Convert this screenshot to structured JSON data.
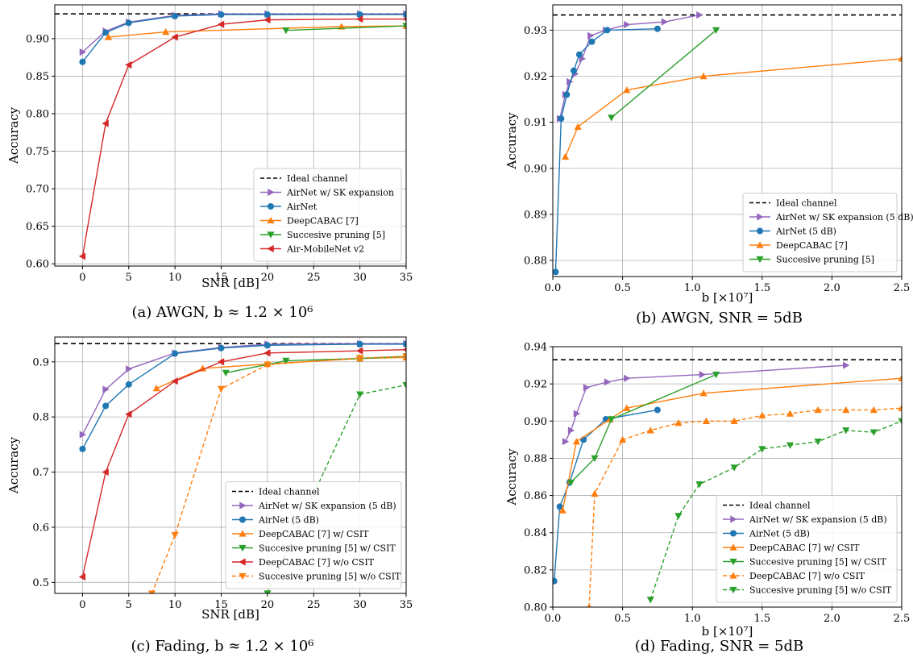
{
  "figure": {
    "panels": [
      "a",
      "b",
      "c",
      "d"
    ]
  },
  "colors": {
    "ideal": "#000000",
    "purple": "#9467bd",
    "blue": "#1f77b4",
    "orange": "#ff7f0e",
    "green": "#2ca02c",
    "red": "#d62728",
    "grid": "#b0b0b0"
  },
  "chart_data": [
    {
      "id": "a",
      "type": "line",
      "caption": "(a) AWGN, b ≈ 1.2 × 10⁶",
      "xlabel": "SNR [dB]",
      "ylabel": "Accuracy",
      "xlim": [
        -3,
        35
      ],
      "ylim": [
        0.597,
        0.945
      ],
      "xticks": [
        0,
        5,
        10,
        15,
        20,
        25,
        30,
        35
      ],
      "xtick_labels": [
        "0",
        "5",
        "10",
        "15",
        "20",
        "25",
        "30",
        "35"
      ],
      "yticks": [
        0.6,
        0.65,
        0.7,
        0.75,
        0.8,
        0.85,
        0.9
      ],
      "ytick_labels": [
        "0.60",
        "0.65",
        "0.70",
        "0.75",
        "0.80",
        "0.85",
        "0.90"
      ],
      "grid": true,
      "legend_position": "lower-right",
      "ideal": 0.933,
      "series": [
        {
          "name": "Ideal channel",
          "color": "#000000",
          "marker": "none",
          "dash": "dashed",
          "x": [],
          "y": []
        },
        {
          "name": "AirNet w/ SK expansion",
          "color": "#9467bd",
          "marker": "tri-right",
          "dash": "solid",
          "x": [
            0,
            2.5,
            5,
            10,
            15,
            20,
            30,
            35
          ],
          "y": [
            0.882,
            0.91,
            0.922,
            0.931,
            0.933,
            0.933,
            0.933,
            0.933
          ]
        },
        {
          "name": "AirNet",
          "color": "#1f77b4",
          "marker": "circle",
          "dash": "solid",
          "x": [
            0,
            2.5,
            5,
            10,
            15,
            20,
            30,
            35
          ],
          "y": [
            0.869,
            0.908,
            0.921,
            0.93,
            0.932,
            0.932,
            0.932,
            0.932
          ]
        },
        {
          "name": "DeepCABAC [7]",
          "color": "#ff7f0e",
          "marker": "tri-up",
          "dash": "solid",
          "x": [
            2.8,
            9,
            28,
            35
          ],
          "y": [
            0.902,
            0.909,
            0.916,
            0.917
          ]
        },
        {
          "name": "Succesive pruning [5]",
          "color": "#2ca02c",
          "marker": "tri-down",
          "dash": "solid",
          "x": [
            22,
            35
          ],
          "y": [
            0.911,
            0.917
          ]
        },
        {
          "name": "Air-MobileNet v2",
          "color": "#d62728",
          "marker": "tri-left",
          "dash": "solid",
          "x": [
            0,
            2.5,
            5,
            10,
            15,
            20,
            30,
            35
          ],
          "y": [
            0.61,
            0.787,
            0.865,
            0.902,
            0.919,
            0.925,
            0.926,
            0.926
          ]
        }
      ]
    },
    {
      "id": "b",
      "type": "line",
      "caption": "(b) AWGN, SNR = 5dB",
      "xlabel": "b [×10⁷]",
      "ylabel": "Accuracy",
      "xlim": [
        0,
        2.5
      ],
      "ylim": [
        0.8765,
        0.9355
      ],
      "xticks": [
        0,
        0.5,
        1.0,
        1.5,
        2.0,
        2.5
      ],
      "xtick_labels": [
        "0.0",
        "0.5",
        "1.0",
        "1.5",
        "2.0",
        "2.5"
      ],
      "yticks": [
        0.88,
        0.89,
        0.9,
        0.91,
        0.92,
        0.93
      ],
      "ytick_labels": [
        "0.88",
        "0.89",
        "0.90",
        "0.91",
        "0.92",
        "0.93"
      ],
      "grid": true,
      "legend_position": "lower-right",
      "ideal": 0.9333,
      "series": [
        {
          "name": "Ideal channel",
          "color": "#000000",
          "marker": "none",
          "dash": "dashed",
          "x": [],
          "y": []
        },
        {
          "name": "AirNet w/ SK expansion (5 dB)",
          "color": "#9467bd",
          "marker": "tri-right",
          "dash": "solid",
          "x": [
            0.05,
            0.09,
            0.12,
            0.16,
            0.21,
            0.27,
            0.38,
            0.53,
            0.8,
            1.05
          ],
          "y": [
            0.9108,
            0.916,
            0.9188,
            0.9205,
            0.9238,
            0.9288,
            0.93,
            0.9312,
            0.9318,
            0.9333
          ]
        },
        {
          "name": "AirNet (5 dB)",
          "color": "#1f77b4",
          "marker": "circle",
          "dash": "solid",
          "x": [
            0.02,
            0.06,
            0.1,
            0.15,
            0.19,
            0.28,
            0.39,
            0.75
          ],
          "y": [
            0.8775,
            0.9108,
            0.916,
            0.9212,
            0.9247,
            0.9275,
            0.93,
            0.9303
          ]
        },
        {
          "name": "DeepCABAC [7]",
          "color": "#ff7f0e",
          "marker": "tri-up",
          "dash": "solid",
          "x": [
            0.09,
            0.18,
            0.53,
            1.08,
            2.5
          ],
          "y": [
            0.9025,
            0.909,
            0.917,
            0.92,
            0.9238
          ]
        },
        {
          "name": "Succesive pruning [5]",
          "color": "#2ca02c",
          "marker": "tri-down",
          "dash": "solid",
          "x": [
            0.42,
            1.17
          ],
          "y": [
            0.911,
            0.93
          ]
        }
      ]
    },
    {
      "id": "c",
      "type": "line",
      "caption": "(c) Fading, b ≈ 1.2 × 10⁶",
      "xlabel": "SNR [dB]",
      "ylabel": "Accuracy",
      "xlim": [
        -3,
        35
      ],
      "ylim": [
        0.48,
        0.945
      ],
      "xticks": [
        0,
        5,
        10,
        15,
        20,
        25,
        30,
        35
      ],
      "xtick_labels": [
        "0",
        "5",
        "10",
        "15",
        "20",
        "25",
        "30",
        "35"
      ],
      "yticks": [
        0.5,
        0.6,
        0.7,
        0.8,
        0.9
      ],
      "ytick_labels": [
        "0.5",
        "0.6",
        "0.7",
        "0.8",
        "0.9"
      ],
      "grid": true,
      "legend_position": "lower-right",
      "ideal": 0.933,
      "series": [
        {
          "name": "Ideal channel",
          "color": "#000000",
          "marker": "none",
          "dash": "dashed",
          "x": [],
          "y": []
        },
        {
          "name": "AirNet w/ SK expansion (5 dB)",
          "color": "#9467bd",
          "marker": "tri-right",
          "dash": "solid",
          "x": [
            0,
            2.5,
            5,
            10,
            15,
            20,
            30,
            35
          ],
          "y": [
            0.768,
            0.85,
            0.887,
            0.916,
            0.926,
            0.932,
            0.933,
            0.933
          ]
        },
        {
          "name": "AirNet (5 dB)",
          "color": "#1f77b4",
          "marker": "circle",
          "dash": "solid",
          "x": [
            0,
            2.5,
            5,
            10,
            15,
            20,
            30,
            35
          ],
          "y": [
            0.742,
            0.82,
            0.859,
            0.915,
            0.925,
            0.93,
            0.932,
            0.932
          ]
        },
        {
          "name": "DeepCABAC [7] w/ CSIT",
          "color": "#ff7f0e",
          "marker": "tri-up",
          "dash": "solid",
          "x": [
            8,
            13,
            20,
            30,
            35
          ],
          "y": [
            0.852,
            0.888,
            0.896,
            0.906,
            0.908
          ]
        },
        {
          "name": "Succesive pruning [5] w/ CSIT",
          "color": "#2ca02c",
          "marker": "tri-down",
          "dash": "solid",
          "x": [
            15.5,
            22,
            30,
            35
          ],
          "y": [
            0.88,
            0.902,
            0.906,
            0.91
          ]
        },
        {
          "name": "DeepCABAC [7] w/o CSIT",
          "color": "#d62728",
          "marker": "tri-left",
          "dash": "solid",
          "x": [
            0,
            2.5,
            5,
            10,
            15,
            20,
            30,
            35
          ],
          "y": [
            0.51,
            0.7,
            0.805,
            0.865,
            0.9,
            0.916,
            0.92,
            0.922
          ]
        },
        {
          "name": "Succesive pruning [5] w/o CSIT",
          "color": "#ff7f0e",
          "marker": "tri-down",
          "dash": "dashed",
          "x": [
            7.5,
            10,
            15,
            20,
            30,
            35
          ],
          "y": [
            0.48,
            0.586,
            0.851,
            0.895,
            0.907,
            0.91
          ]
        },
        {
          "name": "",
          "color": "#2ca02c",
          "marker": "tri-down",
          "dash": "dashed",
          "x": [
            20,
            30,
            35
          ],
          "y": [
            0.48,
            0.841,
            0.858
          ]
        }
      ]
    },
    {
      "id": "d",
      "type": "line",
      "caption": "(d) Fading, SNR = 5dB",
      "xlabel": "b [×10⁷]",
      "ylabel": "Accuracy",
      "xlim": [
        0,
        2.5
      ],
      "ylim": [
        0.8,
        0.94
      ],
      "xticks": [
        0,
        0.5,
        1.0,
        1.5,
        2.0,
        2.5
      ],
      "xtick_labels": [
        "0.0",
        "0.5",
        "1.0",
        "1.5",
        "2.0",
        "2.5"
      ],
      "yticks": [
        0.8,
        0.82,
        0.84,
        0.86,
        0.88,
        0.9,
        0.92,
        0.94
      ],
      "ytick_labels": [
        "0.80",
        "0.82",
        "0.84",
        "0.86",
        "0.88",
        "0.90",
        "0.92",
        "0.94"
      ],
      "grid": true,
      "legend_position": "lower-right",
      "ideal": 0.933,
      "series": [
        {
          "name": "Ideal channel",
          "color": "#000000",
          "marker": "none",
          "dash": "dashed",
          "x": [],
          "y": []
        },
        {
          "name": "AirNet w/ SK expansion (5 dB)",
          "color": "#9467bd",
          "marker": "tri-right",
          "dash": "solid",
          "x": [
            0.09,
            0.13,
            0.17,
            0.24,
            0.39,
            0.53,
            1.07,
            2.1
          ],
          "y": [
            0.889,
            0.895,
            0.904,
            0.918,
            0.921,
            0.923,
            0.925,
            0.93
          ]
        },
        {
          "name": "AirNet (5 dB)",
          "color": "#1f77b4",
          "marker": "circle",
          "dash": "solid",
          "x": [
            0.01,
            0.05,
            0.12,
            0.22,
            0.38,
            0.75
          ],
          "y": [
            0.814,
            0.854,
            0.867,
            0.89,
            0.901,
            0.906
          ]
        },
        {
          "name": "DeepCABAC [7] w/ CSIT",
          "color": "#ff7f0e",
          "marker": "tri-up",
          "dash": "solid",
          "x": [
            0.07,
            0.17,
            0.41,
            0.53,
            1.08,
            2.5
          ],
          "y": [
            0.852,
            0.889,
            0.901,
            0.907,
            0.915,
            0.923
          ]
        },
        {
          "name": "Succesive pruning [5] w/ CSIT",
          "color": "#2ca02c",
          "marker": "tri-down",
          "dash": "solid",
          "x": [
            0.13,
            0.3,
            0.42,
            1.17
          ],
          "y": [
            0.867,
            0.88,
            0.901,
            0.925
          ]
        },
        {
          "name": "DeepCABAC [7] w/o CSIT",
          "color": "#ff7f0e",
          "marker": "tri-up",
          "dash": "dashed",
          "x": [
            0.26,
            0.3,
            0.5,
            0.7,
            0.9,
            1.1,
            1.3,
            1.5,
            1.7,
            1.9,
            2.1,
            2.3,
            2.5
          ],
          "y": [
            0.8,
            0.861,
            0.89,
            0.895,
            0.899,
            0.9,
            0.9,
            0.903,
            0.904,
            0.906,
            0.906,
            0.906,
            0.907
          ]
        },
        {
          "name": "Succesive pruning [5] w/o CSIT",
          "color": "#2ca02c",
          "marker": "tri-down",
          "dash": "dashed",
          "x": [
            0.7,
            0.9,
            1.05,
            1.3,
            1.5,
            1.7,
            1.9,
            2.1,
            2.3,
            2.5
          ],
          "y": [
            0.804,
            0.849,
            0.866,
            0.875,
            0.885,
            0.887,
            0.889,
            0.895,
            0.894,
            0.9
          ]
        }
      ]
    }
  ]
}
